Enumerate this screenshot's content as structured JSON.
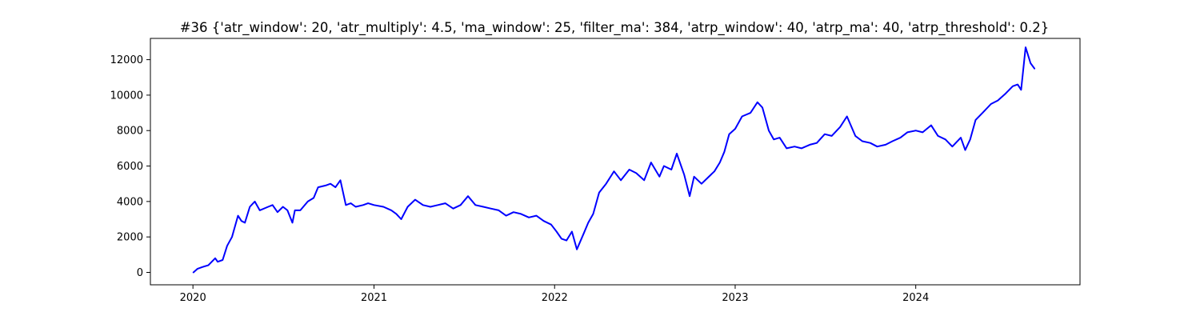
{
  "chart_data": {
    "type": "line",
    "title": "#36 {'atr_window': 20, 'atr_multiply': 4.5, 'ma_window': 25, 'filter_ma': 384, 'atrp_window': 40, 'atrp_ma': 40, 'atrp_threshold': 0.2}",
    "xlabel": "",
    "ylabel": "",
    "xlim": [
      "2019-10-07",
      "2024-11-28"
    ],
    "ylim": [
      -700,
      13200
    ],
    "x_ticks": [
      {
        "date": "2020-01-01",
        "label": "2020"
      },
      {
        "date": "2021-01-01",
        "label": "2021"
      },
      {
        "date": "2022-01-01",
        "label": "2022"
      },
      {
        "date": "2023-01-01",
        "label": "2023"
      },
      {
        "date": "2024-01-01",
        "label": "2024"
      }
    ],
    "y_ticks": [
      {
        "value": 0,
        "label": "0"
      },
      {
        "value": 2000,
        "label": "2000"
      },
      {
        "value": 4000,
        "label": "4000"
      },
      {
        "value": 6000,
        "label": "6000"
      },
      {
        "value": 8000,
        "label": "8000"
      },
      {
        "value": 10000,
        "label": "10000"
      },
      {
        "value": 12000,
        "label": "12000"
      }
    ],
    "grid": false,
    "series": [
      {
        "color": "#0000ff",
        "x": [
          "2020-01-02",
          "2020-01-10",
          "2020-01-20",
          "2020-02-01",
          "2020-02-15",
          "2020-02-20",
          "2020-03-01",
          "2020-03-10",
          "2020-03-20",
          "2020-04-01",
          "2020-04-08",
          "2020-04-15",
          "2020-04-25",
          "2020-05-05",
          "2020-05-15",
          "2020-06-01",
          "2020-06-10",
          "2020-06-20",
          "2020-07-01",
          "2020-07-10",
          "2020-07-20",
          "2020-07-25",
          "2020-08-05",
          "2020-08-20",
          "2020-09-01",
          "2020-09-10",
          "2020-09-25",
          "2020-10-05",
          "2020-10-15",
          "2020-10-25",
          "2020-11-05",
          "2020-11-15",
          "2020-11-25",
          "2020-12-10",
          "2020-12-20",
          "2021-01-01",
          "2021-01-20",
          "2021-02-05",
          "2021-02-15",
          "2021-02-25",
          "2021-03-10",
          "2021-03-25",
          "2021-04-10",
          "2021-04-25",
          "2021-05-10",
          "2021-05-25",
          "2021-06-10",
          "2021-06-25",
          "2021-07-10",
          "2021-07-25",
          "2021-08-10",
          "2021-08-25",
          "2021-09-10",
          "2021-09-25",
          "2021-10-10",
          "2021-10-25",
          "2021-11-10",
          "2021-11-25",
          "2021-12-10",
          "2021-12-25",
          "2022-01-05",
          "2022-01-15",
          "2022-01-25",
          "2022-02-05",
          "2022-02-15",
          "2022-03-01",
          "2022-03-10",
          "2022-03-20",
          "2022-04-01",
          "2022-04-15",
          "2022-05-01",
          "2022-05-15",
          "2022-06-01",
          "2022-06-15",
          "2022-07-01",
          "2022-07-15",
          "2022-08-01",
          "2022-08-10",
          "2022-08-25",
          "2022-09-05",
          "2022-09-20",
          "2022-10-01",
          "2022-10-10",
          "2022-10-25",
          "2022-11-05",
          "2022-11-20",
          "2022-12-01",
          "2022-12-10",
          "2022-12-20",
          "2023-01-01",
          "2023-01-15",
          "2023-02-01",
          "2023-02-15",
          "2023-02-25",
          "2023-03-10",
          "2023-03-20",
          "2023-04-01",
          "2023-04-15",
          "2023-05-01",
          "2023-05-15",
          "2023-06-01",
          "2023-06-15",
          "2023-07-01",
          "2023-07-15",
          "2023-08-01",
          "2023-08-15",
          "2023-09-01",
          "2023-09-15",
          "2023-10-01",
          "2023-10-15",
          "2023-11-01",
          "2023-11-15",
          "2023-12-01",
          "2023-12-15",
          "2024-01-01",
          "2024-01-15",
          "2024-02-01",
          "2024-02-15",
          "2024-03-01",
          "2024-03-15",
          "2024-04-01",
          "2024-04-10",
          "2024-04-20",
          "2024-05-01",
          "2024-05-15",
          "2024-06-01",
          "2024-06-15",
          "2024-07-01",
          "2024-07-15",
          "2024-07-25",
          "2024-08-01",
          "2024-08-10",
          "2024-08-20",
          "2024-08-28"
        ],
        "y": [
          0,
          200,
          300,
          400,
          800,
          600,
          700,
          1500,
          2000,
          3200,
          2900,
          2800,
          3700,
          4000,
          3500,
          3700,
          3800,
          3400,
          3700,
          3500,
          2800,
          3500,
          3500,
          4000,
          4200,
          4800,
          4900,
          5000,
          4800,
          5200,
          3800,
          3900,
          3700,
          3800,
          3900,
          3800,
          3700,
          3500,
          3300,
          3000,
          3700,
          4100,
          3800,
          3700,
          3800,
          3900,
          3600,
          3800,
          4300,
          3800,
          3700,
          3600,
          3500,
          3200,
          3400,
          3300,
          3100,
          3200,
          2900,
          2700,
          2300,
          1900,
          1800,
          2300,
          1300,
          2200,
          2800,
          3300,
          4500,
          5000,
          5700,
          5200,
          5800,
          5600,
          5200,
          6200,
          5400,
          6000,
          5800,
          6700,
          5500,
          4300,
          5400,
          5000,
          5300,
          5700,
          6200,
          6800,
          7800,
          8100,
          8800,
          9000,
          9600,
          9300,
          8000,
          7500,
          7600,
          7000,
          7100,
          7000,
          7200,
          7300,
          7800,
          7700,
          8200,
          8800,
          7700,
          7400,
          7300,
          7100,
          7200,
          7400,
          7600,
          7900,
          8000,
          7900,
          8300,
          7700,
          7500,
          7100,
          7600,
          6900,
          7500,
          8600,
          9000,
          9500,
          9700,
          10100,
          10500,
          10600,
          10300,
          12700,
          11800,
          11500
        ]
      }
    ]
  }
}
